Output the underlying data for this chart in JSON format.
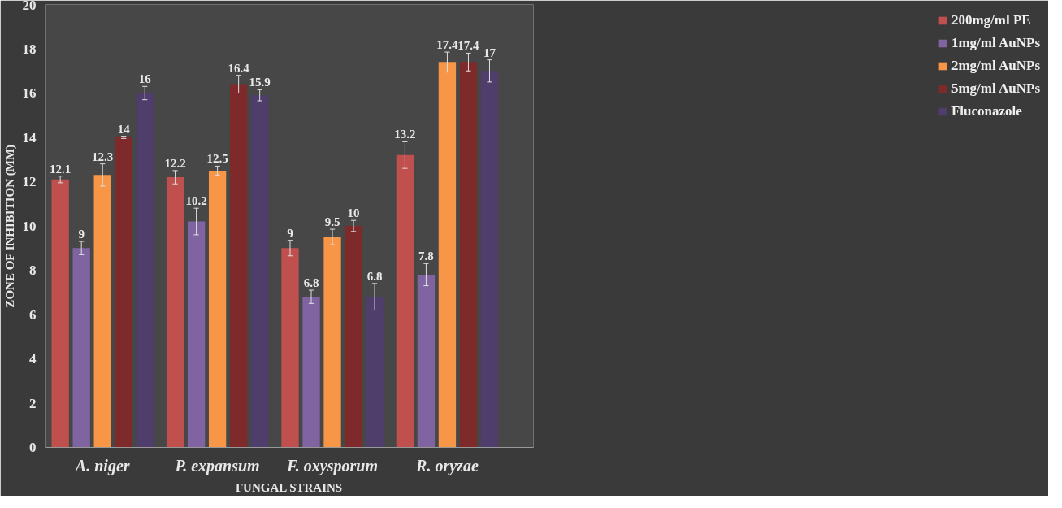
{
  "chart_data": {
    "type": "bar",
    "xlabel": "FUNGAL STRAINS",
    "ylabel": "ZONE OF INHIBITION (MM)",
    "categories": [
      "A. niger",
      "P. expansum",
      "F. oxysporum",
      "R. oryzae"
    ],
    "series": [
      {
        "name": "200mg/ml PE",
        "color": "#c0504d",
        "values": [
          12.1,
          12.2,
          9,
          13.2
        ],
        "errors": [
          0.15,
          0.3,
          0.35,
          0.6
        ]
      },
      {
        "name": "1mg/ml AuNPs",
        "color": "#8064a2",
        "values": [
          9,
          10.2,
          6.8,
          7.8
        ],
        "errors": [
          0.3,
          0.6,
          0.3,
          0.5
        ]
      },
      {
        "name": "2mg/ml AuNPs",
        "color": "#f79646",
        "values": [
          12.3,
          12.5,
          9.5,
          17.4
        ],
        "errors": [
          0.5,
          0.2,
          0.35,
          0.45
        ]
      },
      {
        "name": "5mg/ml AuNPs",
        "color": "#7f2a2a",
        "values": [
          14,
          16.4,
          10,
          17.4
        ],
        "errors": [
          0.05,
          0.4,
          0.25,
          0.4
        ]
      },
      {
        "name": "Fluconazole",
        "color": "#4f3d6b",
        "values": [
          16,
          15.9,
          6.8,
          17
        ],
        "errors": [
          0.3,
          0.25,
          0.6,
          0.5
        ]
      }
    ],
    "ylim": [
      0,
      20
    ],
    "yticks": [
      0,
      2,
      4,
      6,
      8,
      10,
      12,
      14,
      16,
      18,
      20
    ],
    "grid": false,
    "legend": "right",
    "data_labels": true
  }
}
